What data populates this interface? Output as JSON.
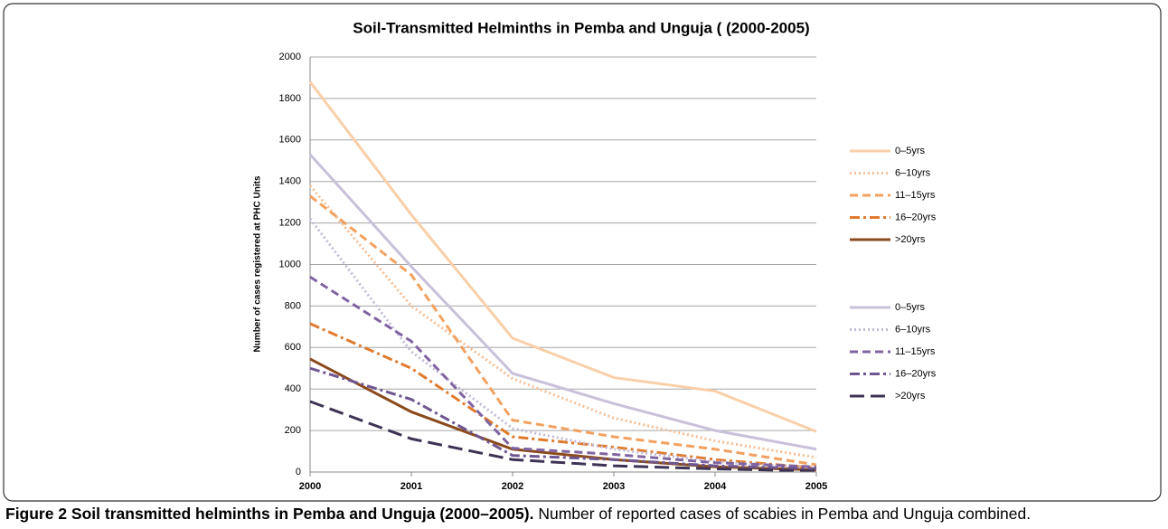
{
  "chart_data": {
    "type": "line",
    "title": "Soil-Transmitted  Helminths in Pemba and Unguja ( (2000-2005)",
    "ylabel": "Number of cases registered at PHC Units",
    "x": [
      2000,
      2001,
      2002,
      2003,
      2004,
      2005
    ],
    "xlim": [
      2000,
      2005
    ],
    "xticks": [
      2000,
      2001,
      2002,
      2003,
      2004,
      2005
    ],
    "ylim": [
      0,
      2000
    ],
    "yticks": [
      0,
      200,
      400,
      600,
      800,
      1000,
      1200,
      1400,
      1600,
      1800,
      2000
    ],
    "grid": true,
    "legend": "right",
    "series": [
      {
        "name": "0–5yrs",
        "color": "#f9cfa8",
        "dash": "solid",
        "values": [
          1880,
          1240,
          645,
          455,
          390,
          195
        ]
      },
      {
        "name": "6–10yrs",
        "color": "#f6be95",
        "dash": "dotted",
        "values": [
          1380,
          800,
          450,
          260,
          150,
          70
        ]
      },
      {
        "name": "11–15yrs",
        "color": "#f2a15f",
        "dash": "dashed",
        "values": [
          1330,
          950,
          250,
          170,
          110,
          35
        ]
      },
      {
        "name": "16–20yrs",
        "color": "#e07b2e",
        "dash": "dashdot",
        "values": [
          715,
          500,
          170,
          120,
          60,
          20
        ]
      },
      {
        "name": ">20yrs",
        "color": "#8b4a1c",
        "dash": "solid",
        "values": [
          545,
          290,
          110,
          60,
          25,
          10
        ]
      },
      {
        "name": "0–5yrs",
        "color": "#c9c0da",
        "dash": "solid",
        "values": [
          1530,
          990,
          475,
          330,
          200,
          110
        ]
      },
      {
        "name": "6–10yrs",
        "color": "#c4bbd6",
        "dash": "dotted",
        "values": [
          1220,
          580,
          210,
          110,
          50,
          20
        ]
      },
      {
        "name": "11–15yrs",
        "color": "#8064a2",
        "dash": "dashed",
        "values": [
          940,
          630,
          115,
          85,
          45,
          25
        ]
      },
      {
        "name": "16–20yrs",
        "color": "#6e5690",
        "dash": "dashdot",
        "values": [
          500,
          350,
          80,
          60,
          30,
          15
        ]
      },
      {
        "name": ">20yrs",
        "color": "#3e3354",
        "dash": "longdash",
        "values": [
          340,
          160,
          60,
          30,
          15,
          5
        ]
      }
    ]
  },
  "caption": {
    "title": "Figure 2 Soil transmitted helminths  in Pemba and Unguja (2000–2005).",
    "text": " Number of reported cases of scabies in Pemba and Unguja combined."
  }
}
